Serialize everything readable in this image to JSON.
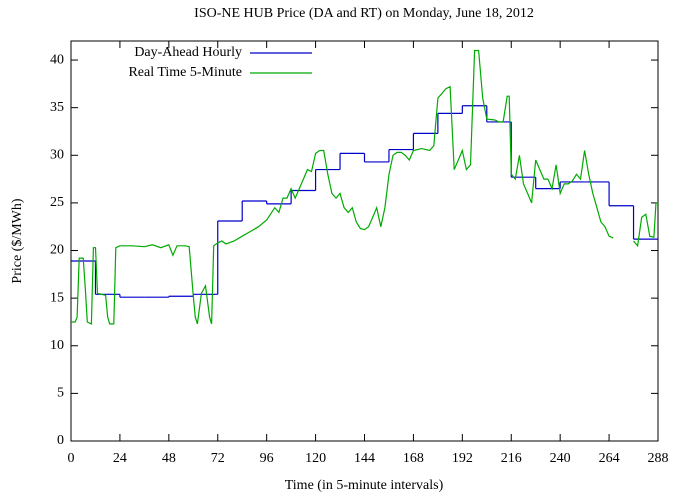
{
  "chart_data": {
    "type": "line",
    "title": "ISO-NE HUB Price (DA and RT) on Monday, June 18, 2012",
    "x_label": "Time (in 5-minute intervals)",
    "y_label": "Price ($/MWh)",
    "xlim": [
      0,
      288
    ],
    "ylim": [
      0,
      42
    ],
    "xticks": [
      0,
      24,
      48,
      72,
      96,
      120,
      144,
      168,
      192,
      216,
      240,
      264,
      288
    ],
    "yticks": [
      0,
      5,
      10,
      15,
      20,
      25,
      30,
      35,
      40
    ],
    "legend": "top-left",
    "series": [
      {
        "name": "Day-Ahead Hourly",
        "color": "#0000cc",
        "step": "post",
        "x": [
          0,
          12,
          24,
          36,
          48,
          60,
          72,
          84,
          96,
          108,
          120,
          132,
          144,
          156,
          168,
          180,
          192,
          204,
          216,
          228,
          240,
          252,
          264,
          276
        ],
        "values": [
          18.9,
          15.4,
          15.1,
          15.1,
          15.2,
          15.4,
          23.1,
          25.2,
          24.9,
          26.3,
          28.5,
          30.2,
          29.3,
          30.6,
          32.3,
          34.4,
          35.2,
          33.5,
          27.7,
          26.5,
          27.2,
          27.2,
          24.7,
          21.2
        ]
      },
      {
        "name": "Real Time 5-Minute",
        "color": "#00aa00",
        "x": [
          0,
          2,
          3,
          4,
          6,
          7,
          8,
          10,
          11,
          12,
          13,
          15,
          17,
          18,
          19,
          21,
          22,
          24,
          30,
          36,
          40,
          44,
          48,
          50,
          52,
          56,
          58,
          60,
          61,
          62,
          64,
          66,
          68,
          69,
          70,
          72,
          74,
          76,
          80,
          84,
          88,
          92,
          96,
          100,
          102,
          104,
          106,
          108,
          110,
          112,
          114,
          116,
          118,
          120,
          122,
          124,
          126,
          128,
          130,
          132,
          134,
          136,
          138,
          140,
          142,
          144,
          146,
          148,
          150,
          152,
          154,
          156,
          158,
          160,
          162,
          164,
          166,
          168,
          172,
          176,
          178,
          180,
          184,
          186,
          188,
          190,
          192,
          194,
          196,
          198,
          200,
          202,
          204,
          208,
          210,
          212,
          214,
          215,
          216,
          218,
          220,
          222,
          224,
          226,
          228,
          230,
          232,
          234,
          236,
          238,
          240,
          242,
          244,
          246,
          248,
          250,
          252,
          254,
          256,
          258,
          260,
          262,
          264,
          266,
          268,
          276,
          278,
          280,
          282,
          284,
          286,
          287,
          288
        ],
        "values": [
          12.5,
          12.5,
          13,
          19.2,
          19.2,
          16,
          12.5,
          12.3,
          20.3,
          20.3,
          15.5,
          15.4,
          15.3,
          13,
          12.3,
          12.3,
          20.3,
          20.5,
          20.5,
          20.4,
          20.6,
          20.3,
          20.6,
          19.5,
          20.5,
          20.5,
          20.4,
          15.2,
          13,
          12.3,
          15.5,
          16.3,
          13,
          12.3,
          20.5,
          20.8,
          21,
          20.7,
          21,
          21.5,
          22,
          22.5,
          23.2,
          24.5,
          24,
          25.5,
          25.5,
          26.5,
          25.5,
          26.5,
          27.5,
          28.5,
          28.3,
          30.2,
          30.5,
          30.5,
          28,
          26,
          25.5,
          26,
          24.5,
          24,
          24.5,
          23,
          22.3,
          22.2,
          22.5,
          23.5,
          24.5,
          22.5,
          24.5,
          28,
          30,
          30.3,
          30.3,
          30,
          29.5,
          30.5,
          30.7,
          30.5,
          31,
          36,
          37,
          37.2,
          28.5,
          29.5,
          30.5,
          28.5,
          29,
          41,
          41,
          36,
          33.8,
          33.7,
          33.5,
          33.5,
          36.2,
          36.2,
          28,
          27.5,
          30,
          27,
          26,
          25,
          29.5,
          28.5,
          27.5,
          27.5,
          26.5,
          29,
          26,
          27,
          27,
          27.3,
          28,
          27.5,
          30.5,
          28,
          26,
          24.5,
          23,
          22.5,
          21.5,
          21.3,
          null,
          21,
          20.5,
          23.5,
          23.8,
          21.5,
          21.4,
          25,
          25
        ]
      }
    ]
  }
}
